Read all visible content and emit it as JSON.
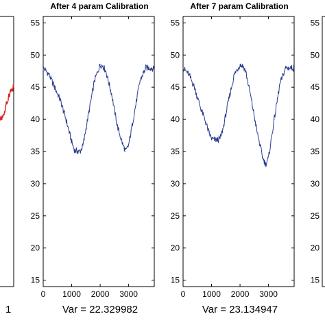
{
  "chart_data": [
    {
      "type": "line",
      "title": "",
      "var_text": "",
      "x_tick_labels": [],
      "y_tick_labels": [],
      "series_color": "#d9231f",
      "x": [
        0,
        100,
        200,
        300
      ],
      "values": [
        40,
        41,
        44,
        45
      ],
      "partial": "left"
    },
    {
      "type": "line",
      "title": "After 4 param Calibration",
      "var_text": "Var = 22.329982",
      "xlim": [
        0,
        3900
      ],
      "ylim": [
        14,
        56
      ],
      "x_tick_labels": [
        "0",
        "1000",
        "2000",
        "3000"
      ],
      "y_tick_labels": [
        "15",
        "20",
        "25",
        "30",
        "35",
        "40",
        "45",
        "50",
        "55"
      ],
      "series_color": "#2a3a8f",
      "x": [
        0,
        200,
        400,
        600,
        800,
        1000,
        1100,
        1200,
        1300,
        1400,
        1600,
        1800,
        2000,
        2100,
        2200,
        2400,
        2600,
        2800,
        2900,
        3000,
        3200,
        3400,
        3600,
        3800,
        3900
      ],
      "values": [
        48,
        47,
        45,
        43,
        40,
        36.5,
        35.2,
        35,
        35,
        36,
        41,
        46,
        48.5,
        48.3,
        47.5,
        44,
        39,
        36,
        35,
        36,
        41,
        46,
        48,
        48,
        47.8
      ]
    },
    {
      "type": "line",
      "title": "After 7 param Calibration",
      "var_text": "Var = 23.134947",
      "xlim": [
        0,
        3900
      ],
      "ylim": [
        14,
        56
      ],
      "x_tick_labels": [
        "0",
        "1000",
        "2000",
        "3000"
      ],
      "y_tick_labels": [
        "15",
        "20",
        "25",
        "30",
        "35",
        "40",
        "45",
        "50",
        "55"
      ],
      "series_color": "#2a3a8f",
      "x": [
        0,
        200,
        400,
        600,
        800,
        900,
        1000,
        1100,
        1200,
        1300,
        1400,
        1600,
        1800,
        2000,
        2100,
        2200,
        2400,
        2600,
        2800,
        2900,
        3000,
        3200,
        3400,
        3600,
        3800,
        3900
      ],
      "values": [
        48,
        47,
        45,
        42,
        39.5,
        38,
        37,
        36.8,
        36.8,
        37,
        38.5,
        43,
        47,
        48.5,
        48.3,
        47.5,
        43,
        38,
        34,
        33,
        34,
        40,
        45.5,
        48,
        48,
        48
      ]
    },
    {
      "type": "line",
      "title": "",
      "var_text": "",
      "x_tick_labels": [],
      "y_tick_labels": [
        "15",
        "20",
        "25",
        "30",
        "35",
        "40",
        "45",
        "50",
        "55"
      ],
      "partial": "right"
    }
  ]
}
